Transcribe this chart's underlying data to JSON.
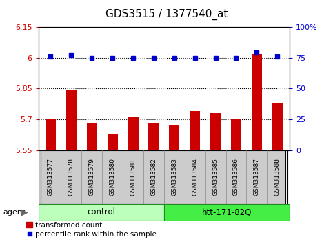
{
  "title": "GDS3515 / 1377540_at",
  "samples": [
    "GSM313577",
    "GSM313578",
    "GSM313579",
    "GSM313580",
    "GSM313581",
    "GSM313582",
    "GSM313583",
    "GSM313584",
    "GSM313585",
    "GSM313586",
    "GSM313587",
    "GSM313588"
  ],
  "red_values": [
    5.7,
    5.84,
    5.68,
    5.63,
    5.71,
    5.68,
    5.67,
    5.74,
    5.73,
    5.7,
    6.02,
    5.78
  ],
  "blue_values": [
    76,
    77,
    75,
    75,
    75,
    75,
    75,
    75,
    75,
    75,
    79,
    76
  ],
  "ylim_left": [
    5.55,
    6.15
  ],
  "ylim_right": [
    0,
    100
  ],
  "yticks_left": [
    5.55,
    5.7,
    5.85,
    6.0,
    6.15
  ],
  "yticks_right": [
    0,
    25,
    50,
    75,
    100
  ],
  "ytick_labels_left": [
    "5.55",
    "5.7",
    "5.85",
    "6",
    "6.15"
  ],
  "ytick_labels_right": [
    "0",
    "25",
    "50",
    "75",
    "100%"
  ],
  "hlines": [
    5.7,
    5.85,
    6.0
  ],
  "ctrl_n": 6,
  "treat_n": 6,
  "control_label": "control",
  "treatment_label": "htt-171-82Q",
  "agent_label": "agent",
  "bar_color": "#cc0000",
  "dot_color": "#0000cc",
  "bar_width": 0.5,
  "bar_bottom": 5.55,
  "legend_red": "transformed count",
  "legend_blue": "percentile rank within the sample",
  "background_color": "#ffffff",
  "plot_bg": "#ffffff",
  "group_color_control": "#bbffbb",
  "group_color_treatment": "#44ee44",
  "sample_box_color": "#cccccc",
  "title_fontsize": 11,
  "tick_fontsize": 8,
  "sample_fontsize": 6.5,
  "group_fontsize": 8.5,
  "legend_fontsize": 7.5
}
